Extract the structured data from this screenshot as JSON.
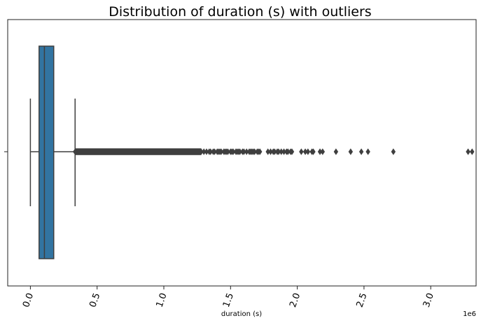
{
  "chart_data": {
    "type": "box",
    "orientation": "horizontal",
    "title": "Distribution of duration (s) with outliers",
    "xlabel": "duration (s)",
    "ylabel": "",
    "x_offset_text": "1e6",
    "xlim": [
      -0.17,
      3.34
    ],
    "x_ticks": [
      0.0,
      0.5,
      1.0,
      1.5,
      2.0,
      2.5,
      3.0
    ],
    "x_tick_labels": [
      "0.0",
      "0.5",
      "1.0",
      "1.5",
      "2.0",
      "2.5",
      "3.0"
    ],
    "x_tick_rotation": 70,
    "box": {
      "whisker_low": 0.0,
      "q1": 0.065,
      "median": 0.105,
      "q3": 0.175,
      "whisker_high": 0.335,
      "fill_color": "#3274a1",
      "line_color": "#3f3f3f"
    },
    "outliers": {
      "dense_range": [
        0.335,
        1.28
      ],
      "values": [
        1.3,
        1.32,
        1.34,
        1.35,
        1.37,
        1.38,
        1.4,
        1.41,
        1.42,
        1.43,
        1.45,
        1.46,
        1.47,
        1.48,
        1.5,
        1.51,
        1.52,
        1.54,
        1.55,
        1.56,
        1.57,
        1.59,
        1.6,
        1.62,
        1.64,
        1.65,
        1.66,
        1.67,
        1.68,
        1.7,
        1.71,
        1.72,
        1.78,
        1.8,
        1.82,
        1.83,
        1.85,
        1.86,
        1.88,
        1.9,
        1.92,
        1.93,
        1.95,
        1.96,
        2.03,
        2.06,
        2.08,
        2.11,
        2.12,
        2.17,
        2.19,
        2.29,
        2.4,
        2.48,
        2.53,
        2.72,
        3.28,
        3.31
      ],
      "marker": "diamond",
      "color": "#3f3f3f"
    }
  }
}
